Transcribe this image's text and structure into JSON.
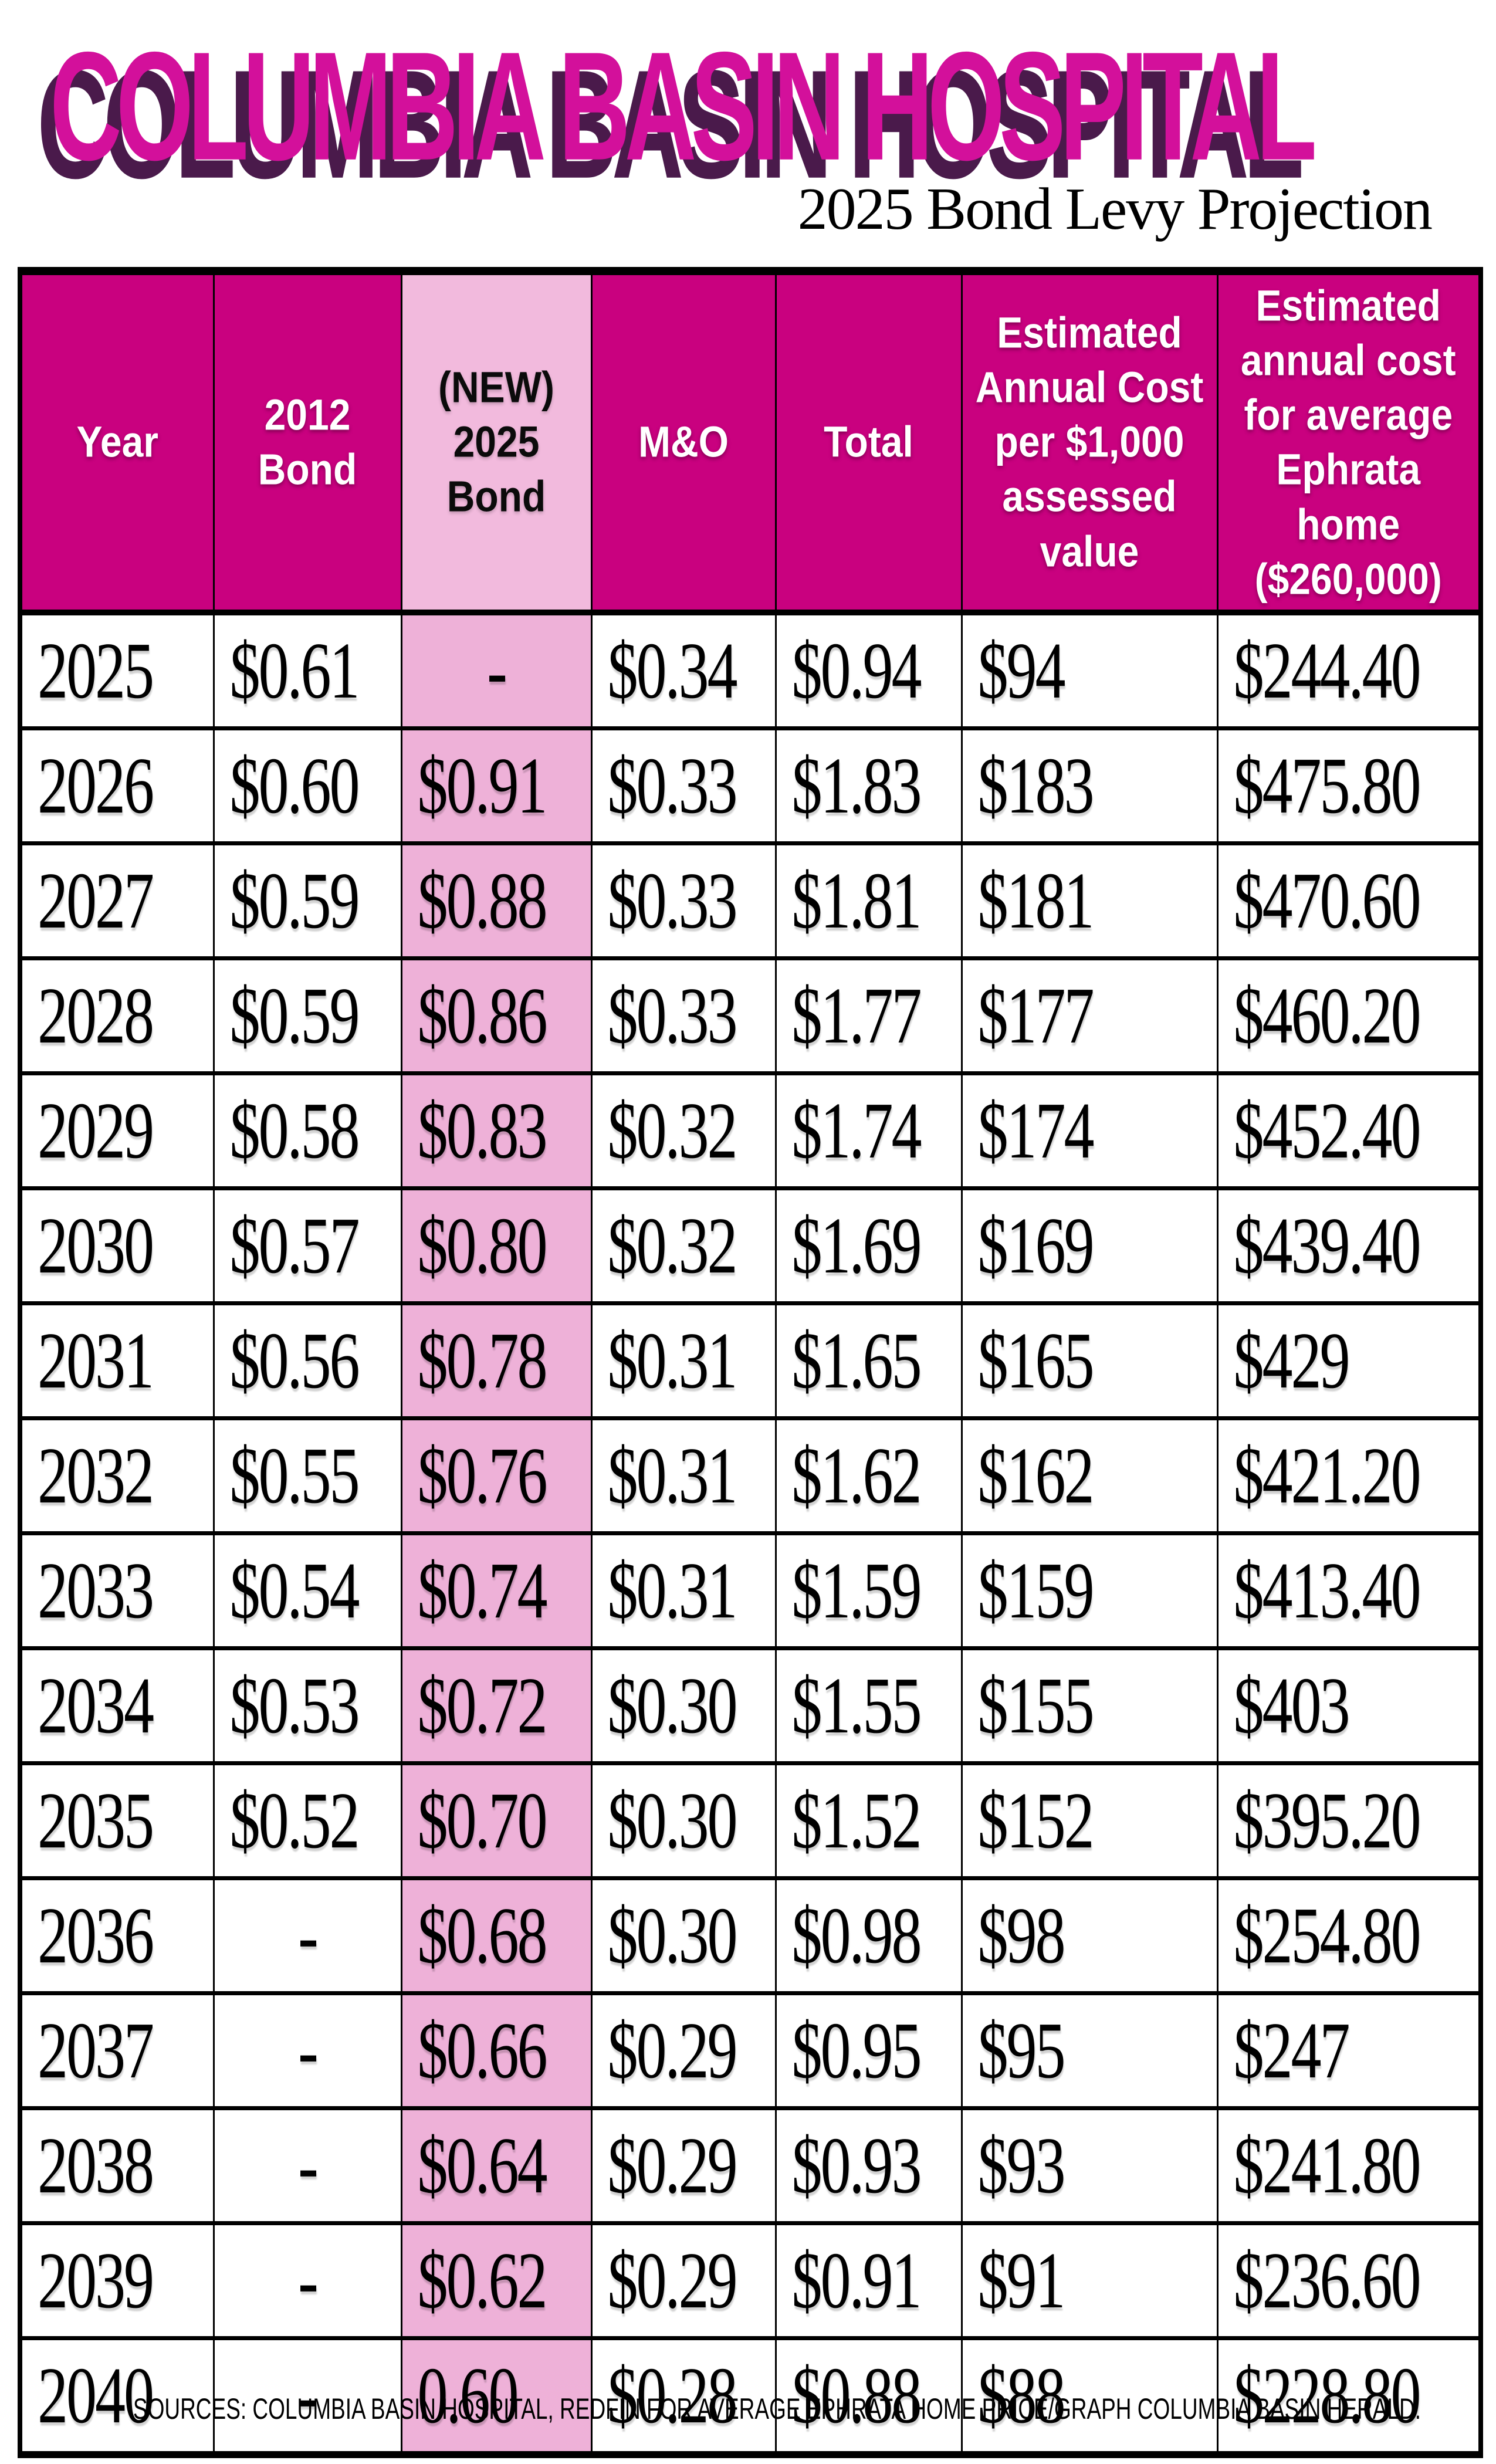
{
  "page": {
    "title": "COLUMBIA BASIN HOSPITAL",
    "subtitle": "2025 Bond Levy Projection",
    "source_note": "SOURCES: COLUMBIA BASIN HOSPITAL, REDFIN FOR AVERAGE EPHRATA HOME PRICE/GRAPH COLUMBIA BASIN HERALD."
  },
  "colors": {
    "header_magenta": "#C9017F",
    "highlight_pink_header": "#F2BADD",
    "highlight_pink_cell": "#EEB1D8",
    "title_pink": "#D3109B",
    "title_shadow_purple": "#4A1A4B",
    "border_black": "#000000",
    "header_text_white": "#FFFFFF",
    "body_text_black": "#000000"
  },
  "chart_data": {
    "type": "table",
    "title": "2025 Bond Levy Projection",
    "highlighted_column": "(NEW) 2025 Bond",
    "columns": [
      "Year",
      "2012 Bond",
      "(NEW) 2025 Bond",
      "M&O",
      "Total",
      "Estimated Annual Cost per $1,000 assessed value",
      "Estimated annual cost for average Ephrata home ($260,000)"
    ],
    "rows": [
      [
        "2025",
        "$0.61",
        "-",
        "$0.34",
        "$0.94",
        "$94",
        "$244.40"
      ],
      [
        "2026",
        "$0.60",
        "$0.91",
        "$0.33",
        "$1.83",
        "$183",
        "$475.80"
      ],
      [
        "2027",
        "$0.59",
        "$0.88",
        "$0.33",
        "$1.81",
        "$181",
        "$470.60"
      ],
      [
        "2028",
        "$0.59",
        "$0.86",
        "$0.33",
        "$1.77",
        "$177",
        "$460.20"
      ],
      [
        "2029",
        "$0.58",
        "$0.83",
        "$0.32",
        "$1.74",
        "$174",
        "$452.40"
      ],
      [
        "2030",
        "$0.57",
        "$0.80",
        "$0.32",
        "$1.69",
        "$169",
        "$439.40"
      ],
      [
        "2031",
        "$0.56",
        "$0.78",
        "$0.31",
        "$1.65",
        "$165",
        "$429"
      ],
      [
        "2032",
        "$0.55",
        "$0.76",
        "$0.31",
        "$1.62",
        "$162",
        "$421.20"
      ],
      [
        "2033",
        "$0.54",
        "$0.74",
        "$0.31",
        "$1.59",
        "$159",
        "$413.40"
      ],
      [
        "2034",
        "$0.53",
        "$0.72",
        "$0.30",
        "$1.55",
        "$155",
        "$403"
      ],
      [
        "2035",
        "$0.52",
        "$0.70",
        "$0.30",
        "$1.52",
        "$152",
        "$395.20"
      ],
      [
        "2036",
        "-",
        "$0.68",
        "$0.30",
        "$0.98",
        "$98",
        "$254.80"
      ],
      [
        "2037",
        "-",
        "$0.66",
        "$0.29",
        "$0.95",
        "$95",
        "$247"
      ],
      [
        "2038",
        "-",
        "$0.64",
        "$0.29",
        "$0.93",
        "$93",
        "$241.80"
      ],
      [
        "2039",
        "-",
        "$0.62",
        "$0.29",
        "$0.91",
        "$91",
        "$236.60"
      ],
      [
        "2040",
        "-",
        "0.60",
        "$0.28",
        "$0.88",
        "$88",
        "$228.80"
      ]
    ]
  }
}
